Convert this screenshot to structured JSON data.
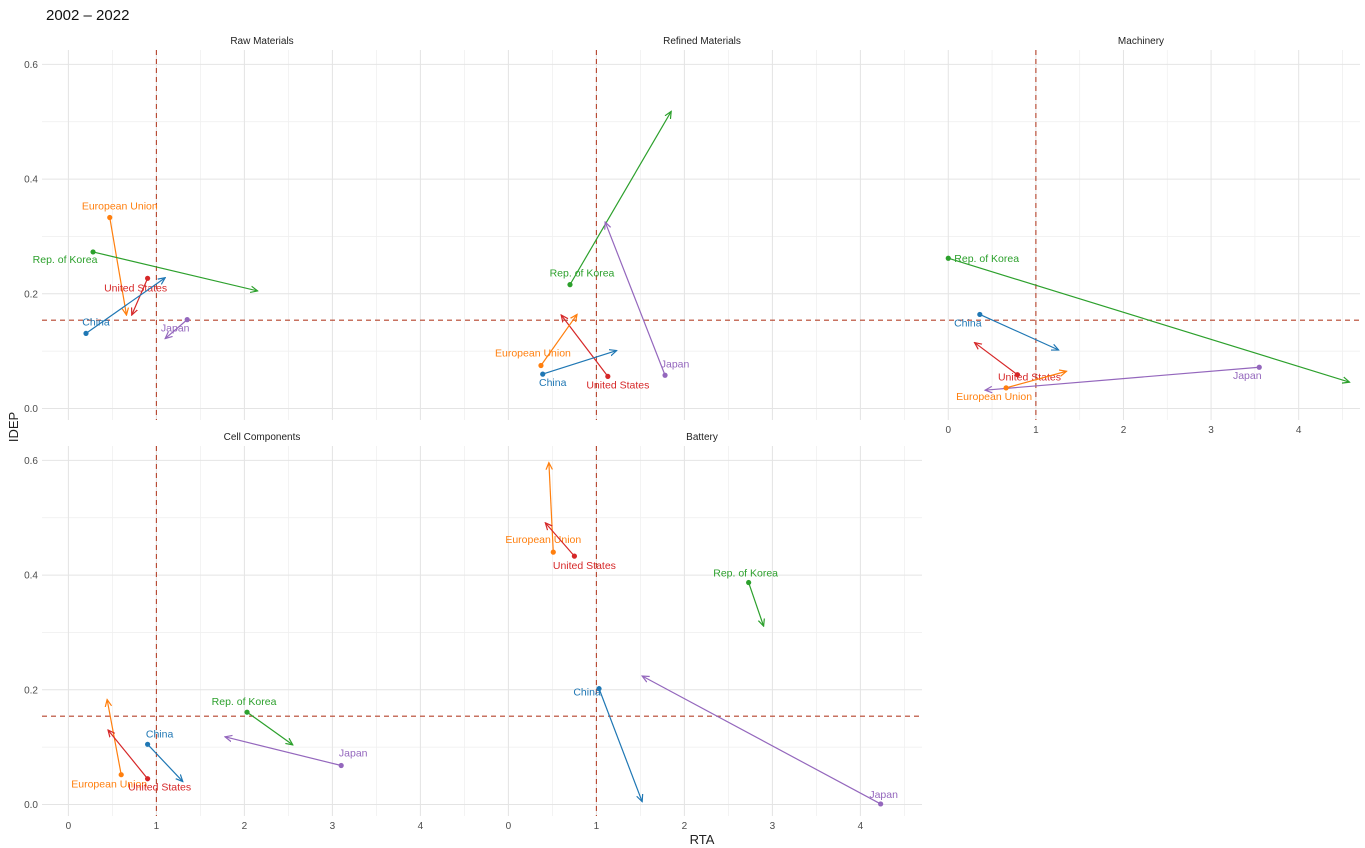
{
  "page": {
    "title": "2002 – 2022"
  },
  "chart_data": {
    "type": "scatter",
    "description_kind": "faceted arrow scatter (start point to end point)",
    "xlabel": "RTA",
    "ylabel": "IDEP",
    "xlim": [
      -0.3,
      4.7
    ],
    "ylim": [
      -0.02,
      0.625
    ],
    "x_ticks": [
      0,
      1,
      2,
      3,
      4
    ],
    "y_ticks": [
      0.0,
      0.2,
      0.4,
      0.6
    ],
    "y_tick_labels": [
      "0.0",
      "0.2",
      "0.4",
      "0.6"
    ],
    "reference_lines": {
      "vertical_x": 1.0,
      "horizontal_y": 0.154,
      "color": "#b5442c"
    },
    "grid": true,
    "colors": {
      "China": "#1f77b4",
      "European Union": "#ff7f0e",
      "Japan": "#9467bd",
      "Rep. of Korea": "#2ca02c",
      "United States": "#d62728"
    },
    "panels": [
      {
        "title": "Raw Materials",
        "series": [
          {
            "name": "European Union",
            "start": [
              0.47,
              0.333
            ],
            "end": [
              0.66,
              0.163
            ]
          },
          {
            "name": "Rep. of Korea",
            "start": [
              0.28,
              0.273
            ],
            "end": [
              2.15,
              0.205
            ]
          },
          {
            "name": "United States",
            "start": [
              0.9,
              0.227
            ],
            "end": [
              0.72,
              0.163
            ]
          },
          {
            "name": "China",
            "start": [
              0.2,
              0.131
            ],
            "end": [
              1.1,
              0.228
            ]
          },
          {
            "name": "Japan",
            "start": [
              1.35,
              0.155
            ],
            "end": [
              1.1,
              0.122
            ]
          }
        ]
      },
      {
        "title": "Refined Materials",
        "series": [
          {
            "name": "Rep. of Korea",
            "start": [
              0.7,
              0.216
            ],
            "end": [
              1.85,
              0.518
            ]
          },
          {
            "name": "Japan",
            "start": [
              1.78,
              0.058
            ],
            "end": [
              1.1,
              0.325
            ]
          },
          {
            "name": "United States",
            "start": [
              1.13,
              0.056
            ],
            "end": [
              0.6,
              0.163
            ]
          },
          {
            "name": "European Union",
            "start": [
              0.37,
              0.075
            ],
            "end": [
              0.78,
              0.164
            ]
          },
          {
            "name": "China",
            "start": [
              0.39,
              0.06
            ],
            "end": [
              1.23,
              0.101
            ]
          }
        ]
      },
      {
        "title": "Machinery",
        "series": [
          {
            "name": "Rep. of Korea",
            "start": [
              0.0,
              0.262
            ],
            "end": [
              4.58,
              0.046
            ]
          },
          {
            "name": "China",
            "start": [
              0.36,
              0.164
            ],
            "end": [
              1.26,
              0.102
            ]
          },
          {
            "name": "United States",
            "start": [
              0.79,
              0.059
            ],
            "end": [
              0.3,
              0.115
            ]
          },
          {
            "name": "Japan",
            "start": [
              3.55,
              0.072
            ],
            "end": [
              0.42,
              0.032
            ]
          },
          {
            "name": "European Union",
            "start": [
              0.66,
              0.036
            ],
            "end": [
              1.35,
              0.065
            ]
          }
        ]
      },
      {
        "title": "Cell Components",
        "series": [
          {
            "name": "China",
            "start": [
              0.9,
              0.105
            ],
            "end": [
              1.3,
              0.04
            ]
          },
          {
            "name": "European Union",
            "start": [
              0.6,
              0.052
            ],
            "end": [
              0.44,
              0.183
            ]
          },
          {
            "name": "United States",
            "start": [
              0.9,
              0.045
            ],
            "end": [
              0.45,
              0.13
            ]
          },
          {
            "name": "Rep. of Korea",
            "start": [
              2.03,
              0.161
            ],
            "end": [
              2.55,
              0.104
            ]
          },
          {
            "name": "Japan",
            "start": [
              3.1,
              0.068
            ],
            "end": [
              1.78,
              0.118
            ]
          }
        ]
      },
      {
        "title": "Battery",
        "series": [
          {
            "name": "European Union",
            "start": [
              0.51,
              0.44
            ],
            "end": [
              0.46,
              0.596
            ]
          },
          {
            "name": "United States",
            "start": [
              0.75,
              0.433
            ],
            "end": [
              0.42,
              0.491
            ]
          },
          {
            "name": "Rep. of Korea",
            "start": [
              2.73,
              0.387
            ],
            "end": [
              2.9,
              0.311
            ]
          },
          {
            "name": "China",
            "start": [
              1.03,
              0.202
            ],
            "end": [
              1.52,
              0.005
            ]
          },
          {
            "name": "Japan",
            "start": [
              4.23,
              0.001
            ],
            "end": [
              1.52,
              0.224
            ]
          }
        ]
      }
    ]
  }
}
